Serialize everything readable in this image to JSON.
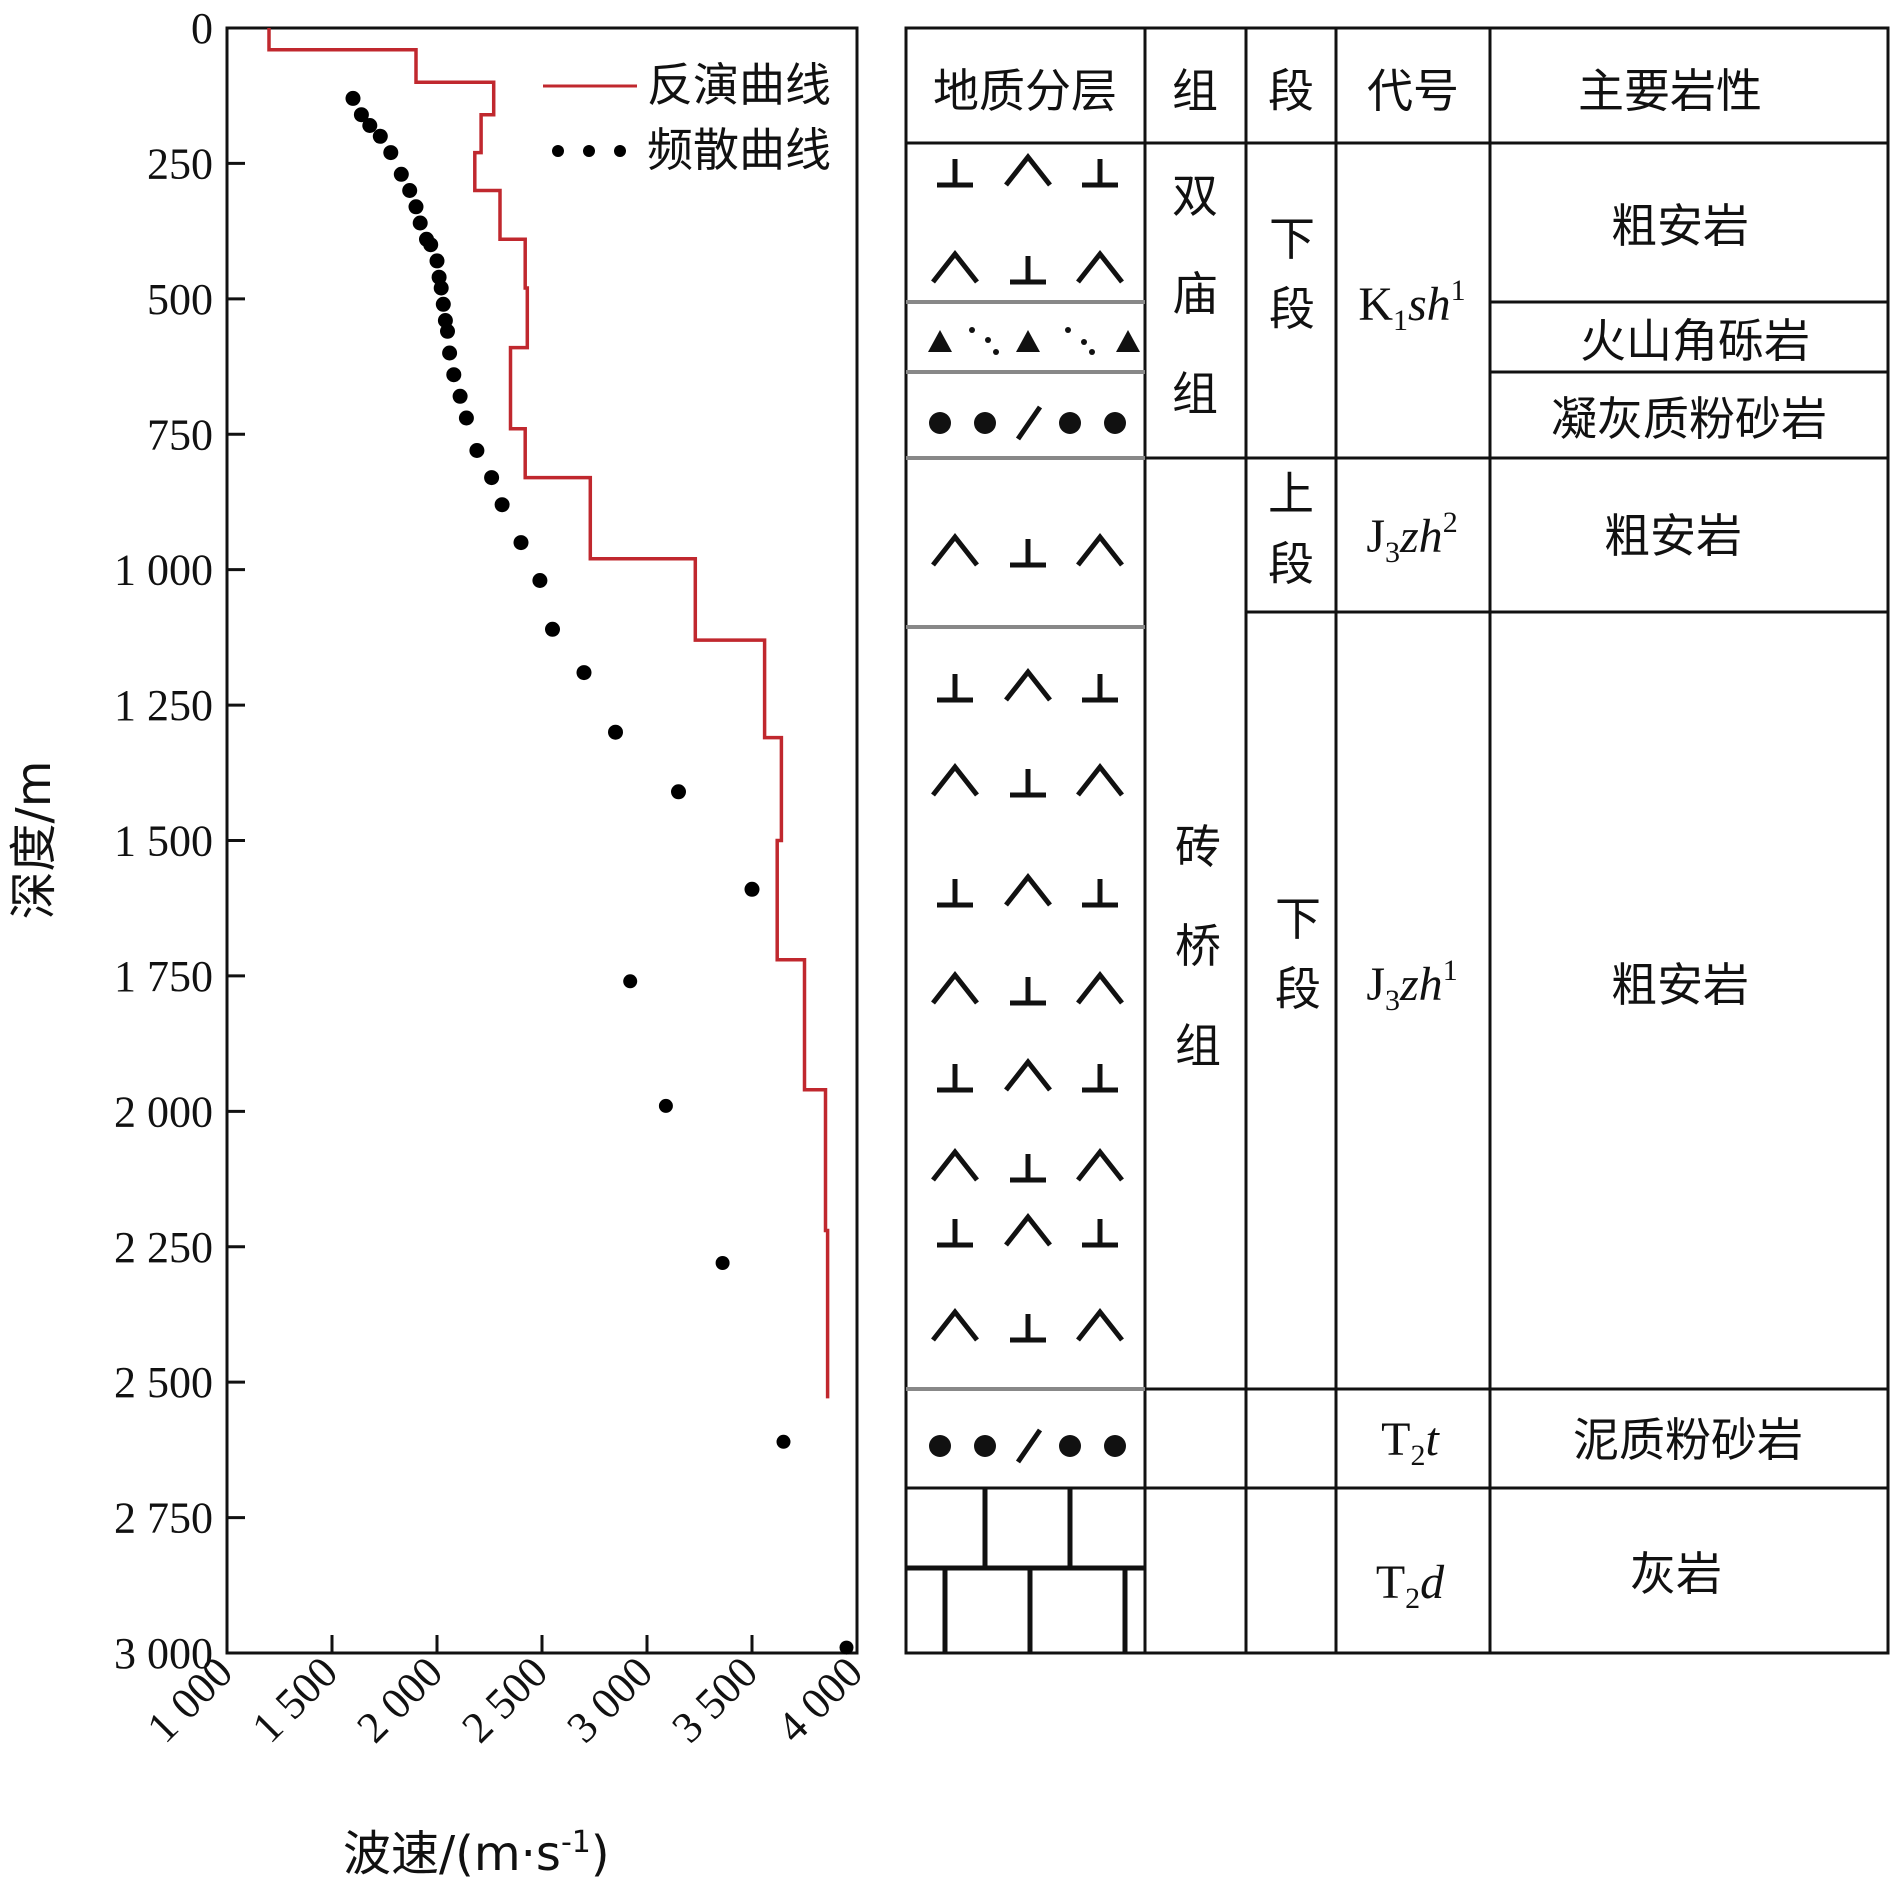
{
  "chart_data": {
    "type": "line",
    "xlabel": "波速/(m·s",
    "xlabel_sup": "-1",
    "xlabel_close": ")",
    "ylabel": "深度/m",
    "xlim": [
      1000,
      4000
    ],
    "ylim": [
      0,
      3000
    ],
    "x_ticks": [
      1000,
      1500,
      2000,
      2500,
      3000,
      3500,
      4000
    ],
    "x_tick_labels": [
      "1 000",
      "1 500",
      "2 000",
      "2 500",
      "3 000",
      "3 500",
      "4 000"
    ],
    "y_ticks": [
      0,
      250,
      500,
      750,
      1000,
      1250,
      1500,
      1750,
      2000,
      2250,
      2500,
      2750,
      3000
    ],
    "y_tick_labels": [
      "0",
      "250",
      "500",
      "750",
      "1 000",
      "1 250",
      "1 500",
      "1 750",
      "2 000",
      "2 250",
      "2 500",
      "2 750",
      "3 000"
    ],
    "legend_position": "top-right",
    "series": [
      {
        "name": "反演曲线",
        "style": "step",
        "color": "#c0282e",
        "x": [
          1200,
          1200,
          1900,
          1900,
          2270,
          2270,
          2210,
          2210,
          2180,
          2180,
          2300,
          2300,
          2420,
          2420,
          2430,
          2430,
          2350,
          2350,
          2420,
          2420,
          2730,
          2730,
          3230,
          3230,
          3560,
          3560,
          3640,
          3640,
          3620,
          3620,
          3750,
          3750,
          3850,
          3850,
          3860,
          3860
        ],
        "y": [
          0,
          40,
          40,
          100,
          100,
          160,
          160,
          230,
          230,
          300,
          300,
          390,
          390,
          480,
          480,
          590,
          590,
          740,
          740,
          830,
          830,
          980,
          980,
          1130,
          1130,
          1310,
          1310,
          1500,
          1500,
          1720,
          1720,
          1960,
          1960,
          2220,
          2220,
          2530
        ]
      },
      {
        "name": "频散曲线",
        "style": "dots",
        "color": "#000000",
        "x": [
          1600,
          1640,
          1680,
          1730,
          1780,
          1830,
          1870,
          1900,
          1920,
          1950,
          1970,
          2000,
          2010,
          2020,
          2030,
          2040,
          2050,
          2060,
          2080,
          2110,
          2140,
          2190,
          2260,
          2310,
          2400,
          2490,
          2550,
          2700,
          2850,
          3150,
          3500
        ],
        "y": [
          130,
          160,
          180,
          200,
          230,
          270,
          300,
          330,
          360,
          390,
          400,
          430,
          460,
          480,
          510,
          540,
          560,
          600,
          640,
          680,
          720,
          780,
          830,
          880,
          950,
          1020,
          1110,
          1190,
          1300,
          1410,
          1590
        ]
      },
      {
        "name": "",
        "style": "dots-sparse",
        "color": "#000000",
        "x": [
          2920,
          3090,
          3360,
          3650,
          3950
        ],
        "y": [
          1760,
          1990,
          2280,
          2610,
          2990
        ]
      }
    ]
  },
  "table": {
    "headers": [
      "地质分层",
      "组",
      "段",
      "代号",
      "主要岩性"
    ],
    "group_shuangmiao": [
      "双",
      "庙",
      "组"
    ],
    "group_zhuanqiao": [
      "砖",
      "桥",
      "组"
    ],
    "section_lower": [
      "下",
      "段"
    ],
    "section_upper": [
      "上",
      "段"
    ],
    "codes": {
      "k1": {
        "base": "K",
        "sub": "1",
        "italic": "sh",
        "sup": "1"
      },
      "j3zh2": {
        "base": "J",
        "sub": "3",
        "italic": "zh",
        "sup": "2"
      },
      "j3zh1": {
        "base": "J",
        "sub": "3",
        "italic": "zh",
        "sup": "1"
      },
      "t2t": {
        "base": "T",
        "sub": "2",
        "italic": "t"
      },
      "t2d": {
        "base": "T",
        "sub": "2",
        "italic": "d"
      }
    },
    "lithology": {
      "row1": "粗安岩",
      "row2": "火山角砾岩",
      "row3": "凝灰质粉砂岩",
      "row4": "粗安岩",
      "row5": "粗安岩",
      "row6": "泥质粉砂岩",
      "row7": "灰岩"
    }
  }
}
